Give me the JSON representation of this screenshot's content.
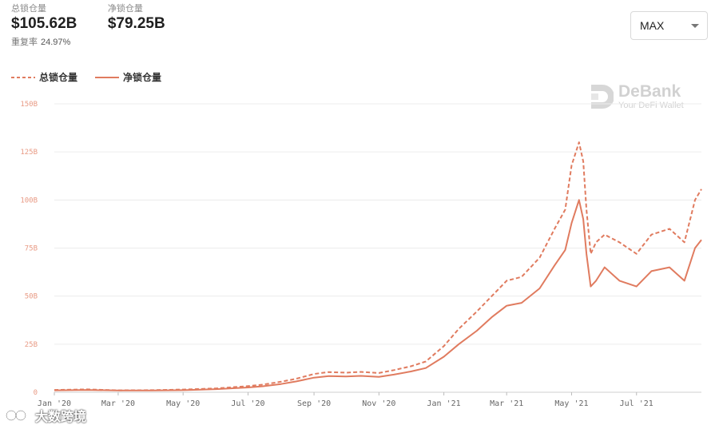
{
  "stats": {
    "total_label": "总锁仓量",
    "total_value": "$105.62B",
    "net_label": "净锁仓量",
    "net_value": "$79.25B",
    "overlap_label": "重复率",
    "overlap_value": "24.97%"
  },
  "range_select": {
    "value": "MAX"
  },
  "legend": {
    "total": "总锁仓量",
    "net": "净锁仓量"
  },
  "logo": {
    "title": "DeBank",
    "subtitle": "Your DeFi Wallet"
  },
  "watermark": {
    "text": "大数跨境"
  },
  "colors": {
    "series": "#e07b5f",
    "grid": "#ececec",
    "ytick": "#e89a84"
  },
  "chart_data": {
    "type": "line",
    "title": "",
    "xlabel": "",
    "ylabel": "",
    "ylim": [
      0,
      150
    ],
    "y_ticks": [
      0,
      25,
      50,
      75,
      100,
      125,
      150
    ],
    "y_tick_labels": [
      "0",
      "25B",
      "50B",
      "75B",
      "100B",
      "125B",
      "150B"
    ],
    "y_unit": "B (USD billions)",
    "x_ticks": [
      "Jan '20",
      "Mar '20",
      "May '20",
      "Jul '20",
      "Sep '20",
      "Nov '20",
      "Jan '21",
      "Mar '21",
      "May '21",
      "Jul '21"
    ],
    "grid": "horizontal",
    "legend_position": "top-left",
    "x": [
      "2020-01-01",
      "2020-02-01",
      "2020-03-01",
      "2020-04-01",
      "2020-05-01",
      "2020-06-01",
      "2020-07-01",
      "2020-07-15",
      "2020-08-01",
      "2020-08-15",
      "2020-09-01",
      "2020-09-15",
      "2020-10-01",
      "2020-10-15",
      "2020-11-01",
      "2020-11-15",
      "2020-12-01",
      "2020-12-15",
      "2021-01-01",
      "2021-01-15",
      "2021-02-01",
      "2021-02-15",
      "2021-03-01",
      "2021-03-15",
      "2021-04-01",
      "2021-04-15",
      "2021-04-25",
      "2021-05-01",
      "2021-05-08",
      "2021-05-12",
      "2021-05-15",
      "2021-05-19",
      "2021-05-24",
      "2021-06-01",
      "2021-06-15",
      "2021-07-01",
      "2021-07-15",
      "2021-08-01",
      "2021-08-15",
      "2021-08-25",
      "2021-08-31"
    ],
    "series": [
      {
        "name": "总锁仓量",
        "style": "dashed",
        "values": [
          1.2,
          1.5,
          1.0,
          1.1,
          1.4,
          2.0,
          3.2,
          4.0,
          5.5,
          7.0,
          9.5,
          10.5,
          10.2,
          10.6,
          10.0,
          11.5,
          13.5,
          16.0,
          24.0,
          33.0,
          42.0,
          50.0,
          58.0,
          60.0,
          70.0,
          85.0,
          95.0,
          118.0,
          130.0,
          120.0,
          95.0,
          72.0,
          78.0,
          82.0,
          78.0,
          72.0,
          82.0,
          85.0,
          78.0,
          100.0,
          105.62
        ]
      },
      {
        "name": "净锁仓量",
        "style": "solid",
        "values": [
          1.0,
          1.2,
          0.9,
          0.9,
          1.1,
          1.6,
          2.5,
          3.1,
          4.3,
          5.6,
          7.6,
          8.4,
          8.2,
          8.5,
          8.0,
          9.2,
          10.8,
          12.6,
          18.5,
          25.0,
          32.0,
          39.0,
          45.0,
          46.5,
          54.0,
          66.0,
          74.0,
          88.0,
          100.0,
          90.0,
          72.0,
          55.0,
          58.0,
          65.0,
          58.0,
          55.0,
          63.0,
          65.0,
          58.0,
          75.0,
          79.25
        ]
      }
    ]
  }
}
